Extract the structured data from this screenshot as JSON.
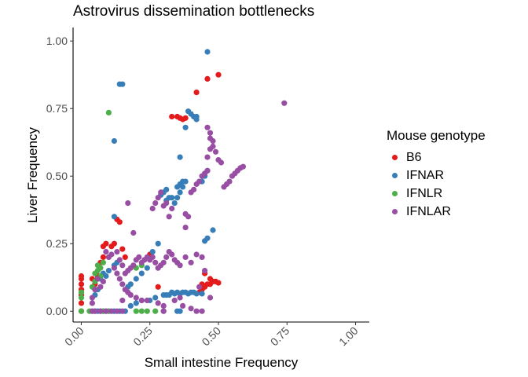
{
  "chart_data": {
    "type": "scatter",
    "title": "Astrovirus dissemination bottlenecks",
    "xlabel": "Small intestine Frequency",
    "ylabel": "Liver Frequency",
    "xlim": [
      -0.03,
      1.05
    ],
    "ylim": [
      -0.04,
      1.05
    ],
    "x_ticks": [
      "0.00",
      "0.25",
      "0.50",
      "0.75",
      "1.00"
    ],
    "y_ticks": [
      "0.00",
      "0.25",
      "0.50",
      "0.75",
      "1.00"
    ],
    "grid": false,
    "legend": {
      "title": "Mouse genotype",
      "position": "right"
    },
    "series": [
      {
        "name": "B6",
        "color": "#E41A1C",
        "points": [
          [
            0.0,
            0.0
          ],
          [
            0.0,
            0.03
          ],
          [
            0.0,
            0.06
          ],
          [
            0.0,
            0.08
          ],
          [
            0.0,
            0.1
          ],
          [
            0.0,
            0.12
          ],
          [
            0.0,
            0.13
          ],
          [
            0.04,
            0.12
          ],
          [
            0.05,
            0.1
          ],
          [
            0.06,
            0.13
          ],
          [
            0.07,
            0.18
          ],
          [
            0.08,
            0.2
          ],
          [
            0.08,
            0.24
          ],
          [
            0.09,
            0.25
          ],
          [
            0.11,
            0.24
          ],
          [
            0.12,
            0.25
          ],
          [
            0.13,
            0.34
          ],
          [
            0.14,
            0.33
          ],
          [
            0.15,
            0.23
          ],
          [
            0.16,
            0.2
          ],
          [
            0.25,
            0.21
          ],
          [
            0.28,
            0.09
          ],
          [
            0.33,
            0.72
          ],
          [
            0.35,
            0.72
          ],
          [
            0.36,
            0.715
          ],
          [
            0.37,
            0.71
          ],
          [
            0.38,
            0.715
          ],
          [
            0.42,
            0.81
          ],
          [
            0.43,
            0.07
          ],
          [
            0.44,
            0.08
          ],
          [
            0.45,
            0.09
          ],
          [
            0.46,
            0.1
          ],
          [
            0.47,
            0.1
          ],
          [
            0.48,
            0.11
          ],
          [
            0.49,
            0.11
          ],
          [
            0.5,
            0.105
          ],
          [
            0.47,
            0.12
          ],
          [
            0.46,
            0.86
          ],
          [
            0.5,
            0.875
          ],
          [
            0.45,
            0.14
          ],
          [
            0.44,
            0.1
          ]
        ]
      },
      {
        "name": "IFNAR",
        "color": "#377EB8",
        "points": [
          [
            0.05,
            0.0
          ],
          [
            0.06,
            0.0
          ],
          [
            0.07,
            0.0
          ],
          [
            0.08,
            0.0
          ],
          [
            0.09,
            0.0
          ],
          [
            0.1,
            0.0
          ],
          [
            0.12,
            0.0
          ],
          [
            0.14,
            0.0
          ],
          [
            0.16,
            0.0
          ],
          [
            0.05,
            0.06
          ],
          [
            0.06,
            0.08
          ],
          [
            0.07,
            0.12
          ],
          [
            0.08,
            0.14
          ],
          [
            0.09,
            0.13
          ],
          [
            0.1,
            0.15
          ],
          [
            0.12,
            0.17
          ],
          [
            0.13,
            0.18
          ],
          [
            0.12,
            0.63
          ],
          [
            0.14,
            0.84
          ],
          [
            0.15,
            0.84
          ],
          [
            0.12,
            0.35
          ],
          [
            0.17,
            0.09
          ],
          [
            0.18,
            0.1
          ],
          [
            0.2,
            0.12
          ],
          [
            0.22,
            0.14
          ],
          [
            0.24,
            0.16
          ],
          [
            0.26,
            0.22
          ],
          [
            0.28,
            0.25
          ],
          [
            0.3,
            0.06
          ],
          [
            0.31,
            0.06
          ],
          [
            0.32,
            0.06
          ],
          [
            0.33,
            0.07
          ],
          [
            0.34,
            0.065
          ],
          [
            0.35,
            0.07
          ],
          [
            0.36,
            0.065
          ],
          [
            0.37,
            0.07
          ],
          [
            0.38,
            0.07
          ],
          [
            0.39,
            0.065
          ],
          [
            0.4,
            0.07
          ],
          [
            0.41,
            0.07
          ],
          [
            0.42,
            0.065
          ],
          [
            0.44,
            0.065
          ],
          [
            0.34,
            0.4
          ],
          [
            0.35,
            0.42
          ],
          [
            0.36,
            0.44
          ],
          [
            0.37,
            0.46
          ],
          [
            0.38,
            0.48
          ],
          [
            0.33,
            0.42
          ],
          [
            0.32,
            0.42
          ],
          [
            0.31,
            0.41
          ],
          [
            0.29,
            0.43
          ],
          [
            0.3,
            0.44
          ],
          [
            0.31,
            0.45
          ],
          [
            0.36,
            0.47
          ],
          [
            0.37,
            0.48
          ],
          [
            0.35,
            0.46
          ],
          [
            0.36,
            0.57
          ],
          [
            0.38,
            0.68
          ],
          [
            0.39,
            0.74
          ],
          [
            0.4,
            0.73
          ],
          [
            0.41,
            0.72
          ],
          [
            0.42,
            0.72
          ],
          [
            0.42,
            0.71
          ],
          [
            0.44,
            0.48
          ],
          [
            0.45,
            0.5
          ],
          [
            0.46,
            0.52
          ],
          [
            0.45,
            0.26
          ],
          [
            0.46,
            0.27
          ],
          [
            0.48,
            0.3
          ],
          [
            0.46,
            0.96
          ],
          [
            0.27,
            0.05
          ],
          [
            0.25,
            0.04
          ],
          [
            0.22,
            0.04
          ],
          [
            0.2,
            0.03
          ],
          [
            0.18,
            0.02
          ],
          [
            0.35,
            0.0
          ],
          [
            0.36,
            0.0
          ]
        ]
      },
      {
        "name": "IFNLR",
        "color": "#4DAF4A",
        "points": [
          [
            0.0,
            0.05
          ],
          [
            0.0,
            0.07
          ],
          [
            0.0,
            0.0
          ],
          [
            0.03,
            0.0
          ],
          [
            0.04,
            0.0
          ],
          [
            0.04,
            0.09
          ],
          [
            0.05,
            0.11
          ],
          [
            0.05,
            0.14
          ],
          [
            0.06,
            0.15
          ],
          [
            0.06,
            0.17
          ],
          [
            0.07,
            0.16
          ],
          [
            0.08,
            0.18
          ],
          [
            0.07,
            0.13
          ],
          [
            0.06,
            0.12
          ],
          [
            0.08,
            0.0
          ],
          [
            0.1,
            0.0
          ],
          [
            0.1,
            0.735
          ],
          [
            0.2,
            0.16
          ],
          [
            0.22,
            0.17
          ],
          [
            0.2,
            0.0
          ],
          [
            0.22,
            0.0
          ],
          [
            0.24,
            0.0
          ],
          [
            0.27,
            0.0
          ],
          [
            0.3,
            0.0
          ]
        ]
      },
      {
        "name": "IFNLAR",
        "color": "#984EA3",
        "points": [
          [
            0.04,
            0.0
          ],
          [
            0.05,
            0.0
          ],
          [
            0.07,
            0.0
          ],
          [
            0.09,
            0.0
          ],
          [
            0.11,
            0.0
          ],
          [
            0.13,
            0.0
          ],
          [
            0.15,
            0.0
          ],
          [
            0.04,
            0.05
          ],
          [
            0.04,
            0.03
          ],
          [
            0.05,
            0.08
          ],
          [
            0.06,
            0.12
          ],
          [
            0.07,
            0.09
          ],
          [
            0.08,
            0.11
          ],
          [
            0.09,
            0.22
          ],
          [
            0.1,
            0.2
          ],
          [
            0.11,
            0.21
          ],
          [
            0.13,
            0.22
          ],
          [
            0.14,
            0.19
          ],
          [
            0.15,
            0.17
          ],
          [
            0.16,
            0.14
          ],
          [
            0.17,
            0.15
          ],
          [
            0.18,
            0.16
          ],
          [
            0.19,
            0.17
          ],
          [
            0.2,
            0.19
          ],
          [
            0.21,
            0.2
          ],
          [
            0.22,
            0.18
          ],
          [
            0.23,
            0.19
          ],
          [
            0.24,
            0.2
          ],
          [
            0.25,
            0.19
          ],
          [
            0.26,
            0.2
          ],
          [
            0.27,
            0.18
          ],
          [
            0.28,
            0.16
          ],
          [
            0.29,
            0.17
          ],
          [
            0.3,
            0.18
          ],
          [
            0.31,
            0.2
          ],
          [
            0.32,
            0.22
          ],
          [
            0.33,
            0.21
          ],
          [
            0.34,
            0.19
          ],
          [
            0.35,
            0.18
          ],
          [
            0.36,
            0.17
          ],
          [
            0.38,
            0.2
          ],
          [
            0.4,
            0.18
          ],
          [
            0.42,
            0.21
          ],
          [
            0.44,
            0.2
          ],
          [
            0.12,
            0.16
          ],
          [
            0.13,
            0.14
          ],
          [
            0.14,
            0.12
          ],
          [
            0.15,
            0.1
          ],
          [
            0.16,
            0.08
          ],
          [
            0.17,
            0.07
          ],
          [
            0.18,
            0.06
          ],
          [
            0.2,
            0.05
          ],
          [
            0.22,
            0.04
          ],
          [
            0.24,
            0.04
          ],
          [
            0.15,
            0.04
          ],
          [
            0.17,
            0.4
          ],
          [
            0.19,
            0.29
          ],
          [
            0.26,
            0.38
          ],
          [
            0.27,
            0.4
          ],
          [
            0.28,
            0.42
          ],
          [
            0.29,
            0.44
          ],
          [
            0.3,
            0.39
          ],
          [
            0.31,
            0.4
          ],
          [
            0.33,
            0.38
          ],
          [
            0.32,
            0.35
          ],
          [
            0.38,
            0.36
          ],
          [
            0.39,
            0.35
          ],
          [
            0.38,
            0.31
          ],
          [
            0.4,
            0.44
          ],
          [
            0.41,
            0.45
          ],
          [
            0.42,
            0.47
          ],
          [
            0.43,
            0.48
          ],
          [
            0.44,
            0.5
          ],
          [
            0.45,
            0.51
          ],
          [
            0.46,
            0.52
          ],
          [
            0.46,
            0.57
          ],
          [
            0.47,
            0.6
          ],
          [
            0.48,
            0.63
          ],
          [
            0.47,
            0.66
          ],
          [
            0.46,
            0.68
          ],
          [
            0.47,
            0.64
          ],
          [
            0.48,
            0.61
          ],
          [
            0.49,
            0.59
          ],
          [
            0.5,
            0.56
          ],
          [
            0.51,
            0.55
          ],
          [
            0.52,
            0.46
          ],
          [
            0.53,
            0.47
          ],
          [
            0.54,
            0.48
          ],
          [
            0.55,
            0.5
          ],
          [
            0.56,
            0.51
          ],
          [
            0.57,
            0.52
          ],
          [
            0.58,
            0.53
          ],
          [
            0.59,
            0.535
          ],
          [
            0.74,
            0.77
          ],
          [
            0.28,
            0.03
          ],
          [
            0.3,
            0.02
          ],
          [
            0.36,
            0.05
          ],
          [
            0.34,
            0.04
          ],
          [
            0.37,
            0.02
          ],
          [
            0.4,
            0.01
          ],
          [
            0.45,
            0.15
          ],
          [
            0.47,
            0.05
          ],
          [
            0.43,
            0.09
          ],
          [
            0.44,
            0.0
          ],
          [
            0.42,
            0.0
          ],
          [
            0.3,
            0.0
          ]
        ]
      }
    ]
  }
}
